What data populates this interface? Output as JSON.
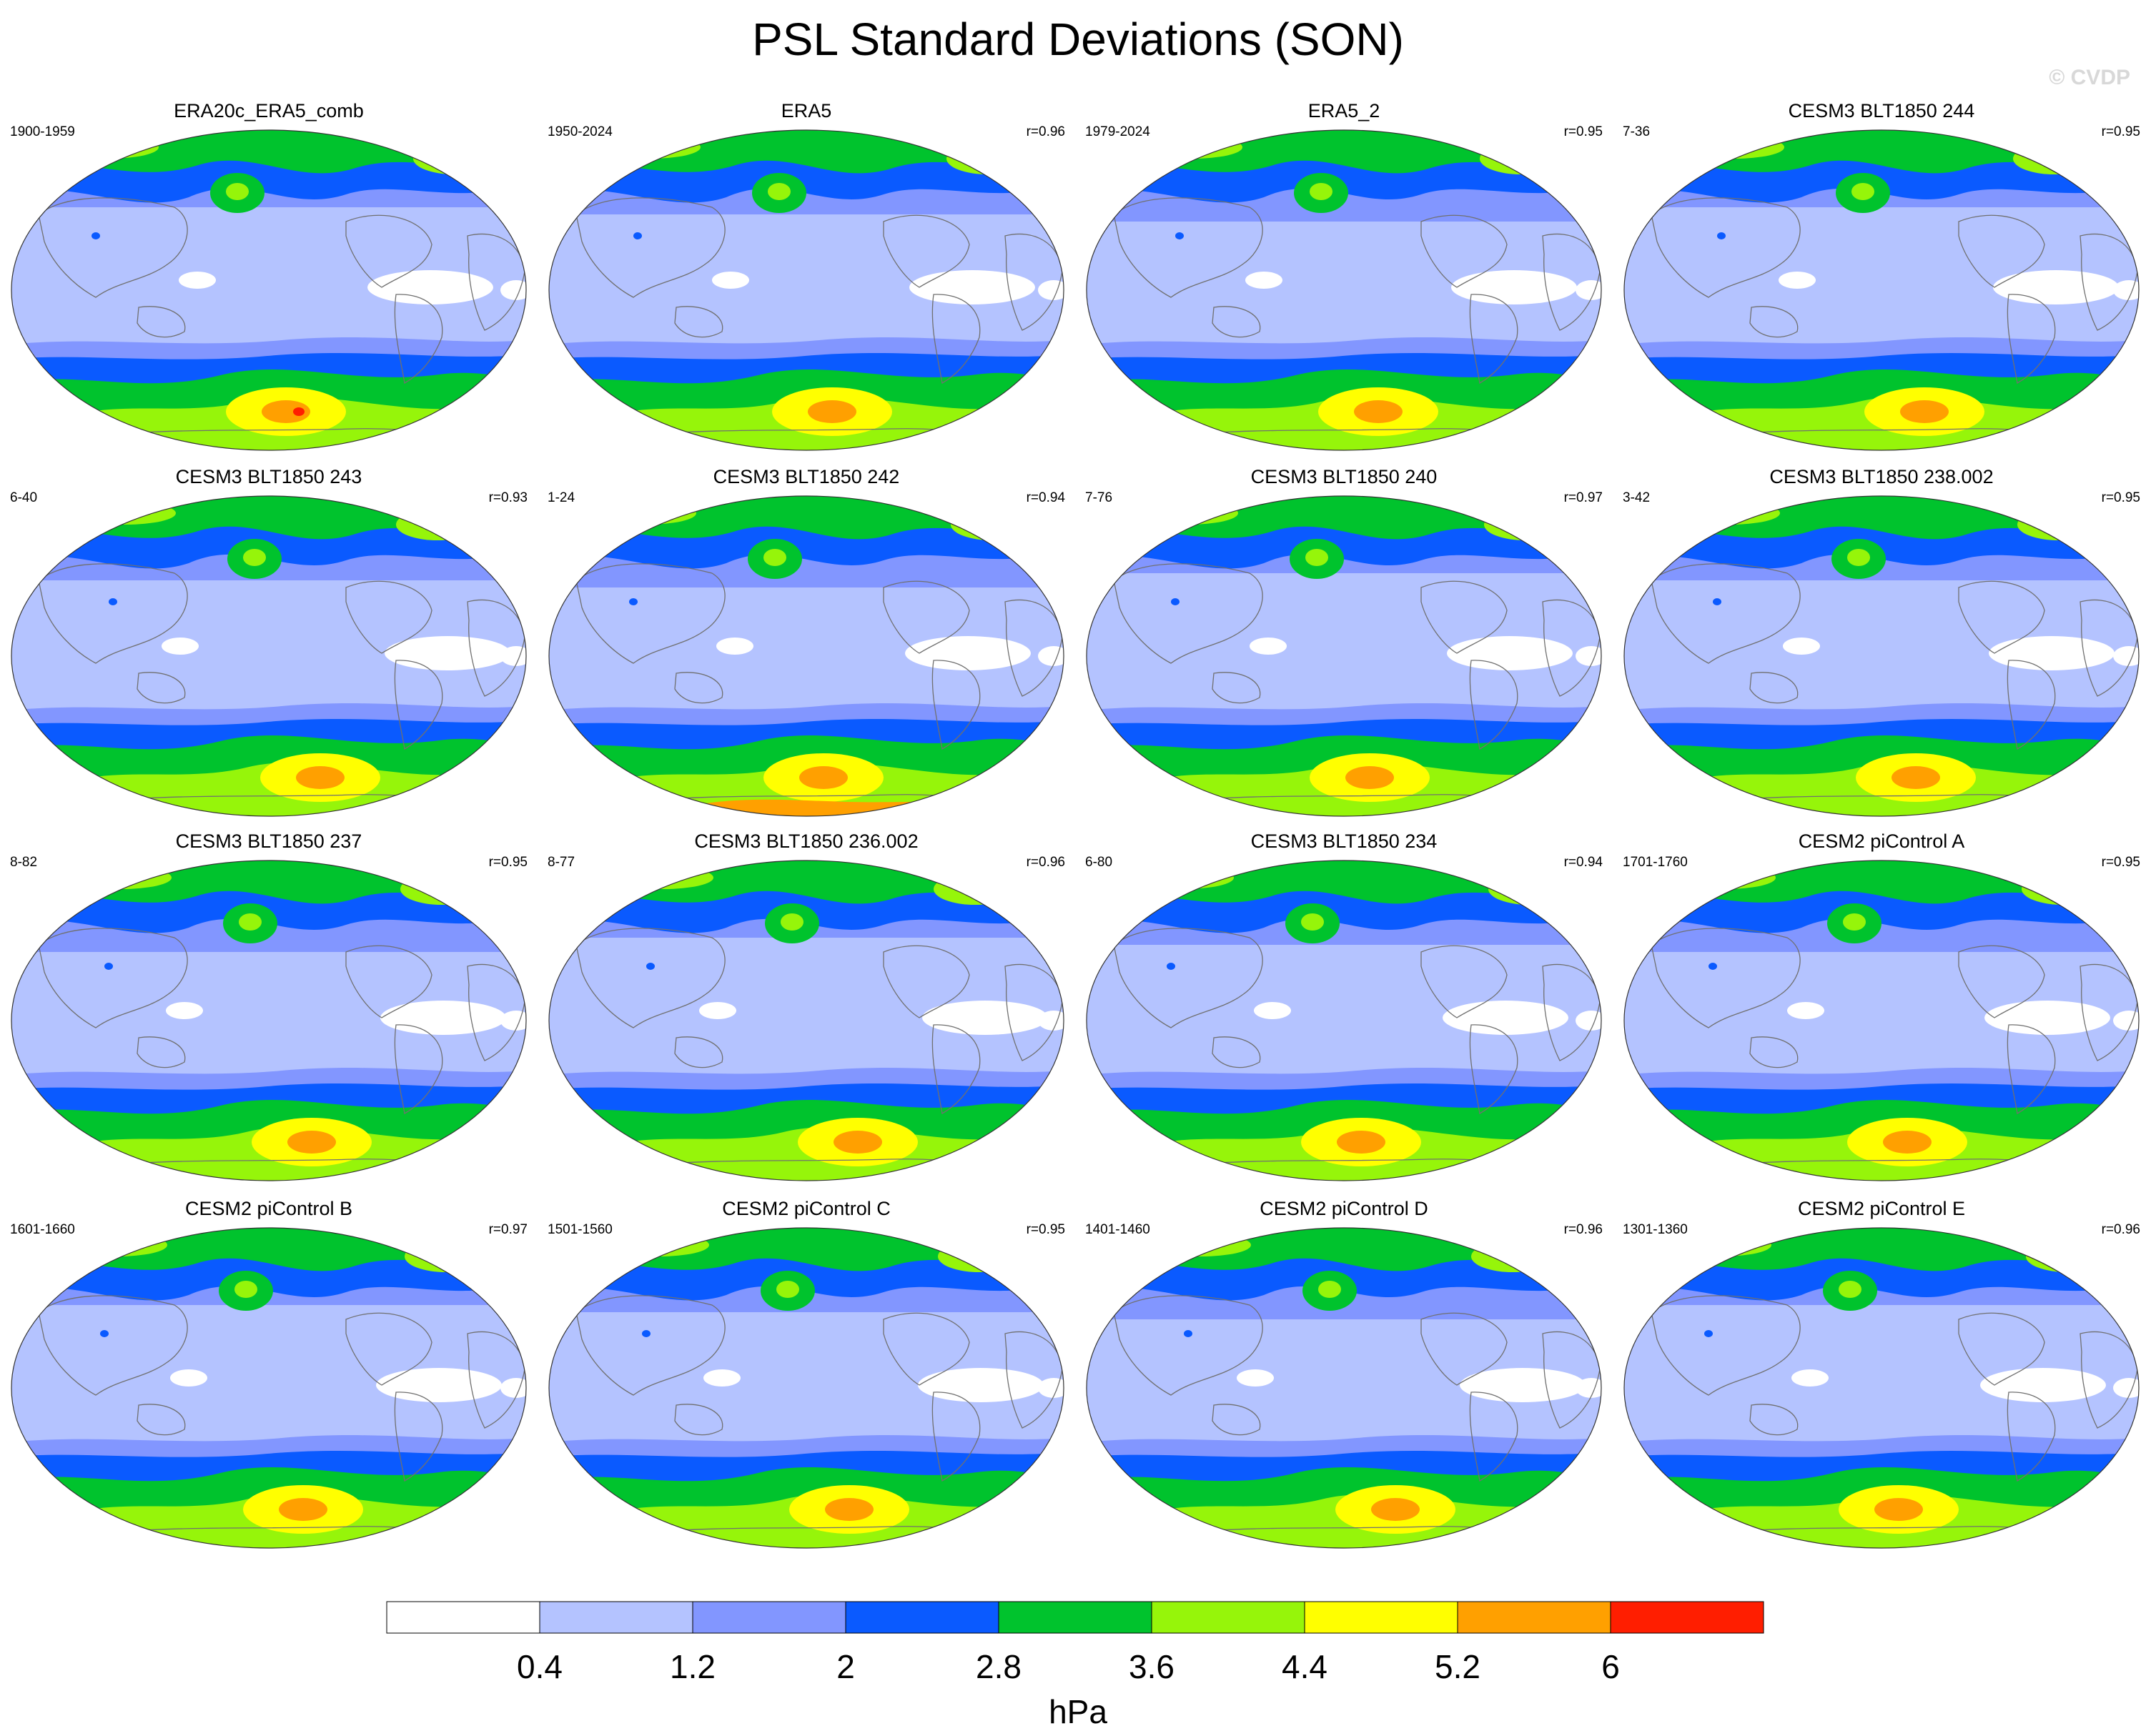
{
  "title": "PSL Standard Deviations (SON)",
  "watermark": "© CVDP",
  "units": "hPa",
  "colorbar": {
    "ticks": [
      "0.4",
      "1.2",
      "2",
      "2.8",
      "3.6",
      "4.4",
      "5.2",
      "6"
    ],
    "colors": [
      "#ffffff",
      "#b4c3ff",
      "#8296ff",
      "#0a5aff",
      "#00c32d",
      "#96f50a",
      "#ffff00",
      "#ffa000",
      "#ff1e00"
    ]
  },
  "panels": [
    {
      "title": "ERA20c_ERA5_comb",
      "left": "1900-1959",
      "right": ""
    },
    {
      "title": "ERA5",
      "left": "1950-2024",
      "right": "r=0.96"
    },
    {
      "title": "ERA5_2",
      "left": "1979-2024",
      "right": "r=0.95"
    },
    {
      "title": "CESM3 BLT1850 244",
      "left": "7-36",
      "right": "r=0.95"
    },
    {
      "title": "CESM3 BLT1850 243",
      "left": "6-40",
      "right": "r=0.93"
    },
    {
      "title": "CESM3 BLT1850 242",
      "left": "1-24",
      "right": "r=0.94"
    },
    {
      "title": "CESM3 BLT1850 240",
      "left": "7-76",
      "right": "r=0.97"
    },
    {
      "title": "CESM3 BLT1850 238.002",
      "left": "3-42",
      "right": "r=0.95"
    },
    {
      "title": "CESM3 BLT1850 237",
      "left": "8-82",
      "right": "r=0.95"
    },
    {
      "title": "CESM3 BLT1850 236.002",
      "left": "8-77",
      "right": "r=0.96"
    },
    {
      "title": "CESM3 BLT1850 234",
      "left": "6-80",
      "right": "r=0.94"
    },
    {
      "title": "CESM2 piControl A",
      "left": "1701-1760",
      "right": "r=0.95"
    },
    {
      "title": "CESM2 piControl B",
      "left": "1601-1660",
      "right": "r=0.97"
    },
    {
      "title": "CESM2 piControl C",
      "left": "1501-1560",
      "right": "r=0.95"
    },
    {
      "title": "CESM2 piControl D",
      "left": "1401-1460",
      "right": "r=0.96"
    },
    {
      "title": "CESM2 piControl E",
      "left": "1301-1360",
      "right": "r=0.96"
    }
  ]
}
